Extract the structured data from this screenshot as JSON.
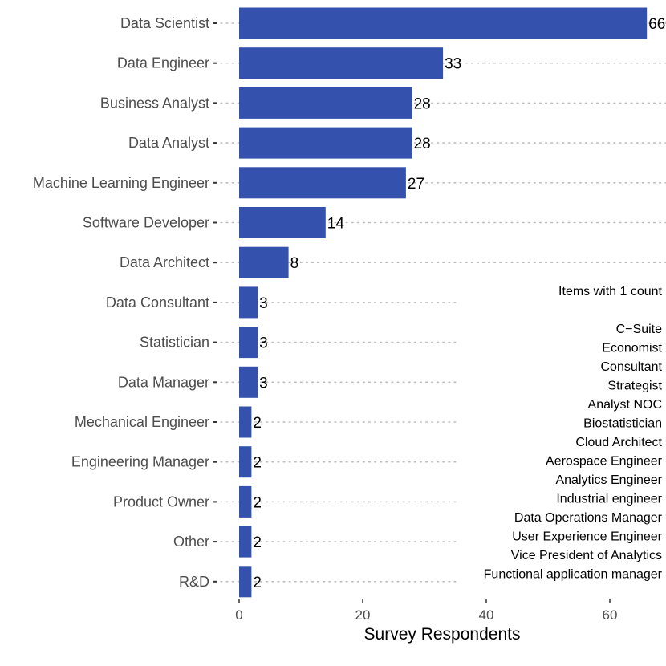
{
  "chart_data": {
    "type": "bar",
    "orientation": "horizontal",
    "categories": [
      "Data Scientist",
      "Data Engineer",
      "Business Analyst",
      "Data Analyst",
      "Machine Learning Engineer",
      "Software Developer",
      "Data Architect",
      "Data Consultant",
      "Statistician",
      "Data Manager",
      "Mechanical Engineer",
      "Engineering Manager",
      "Product Owner",
      "Other",
      "R&D"
    ],
    "values": [
      66,
      33,
      28,
      28,
      27,
      14,
      8,
      3,
      3,
      3,
      2,
      2,
      2,
      2,
      2
    ],
    "value_labels": [
      "66",
      "33",
      "28",
      "28",
      "27",
      "14",
      "8",
      "3",
      "3",
      "3",
      "2",
      "2",
      "2",
      "2",
      "2"
    ],
    "xlabel": "Survey Respondents",
    "ylabel": "",
    "xlim": [
      0,
      68
    ],
    "x_ticks": [
      0,
      20,
      40,
      60
    ],
    "x_tick_labels": [
      "0",
      "20",
      "40",
      "60"
    ],
    "bar_color": "#3451ad",
    "grid": "dotted horizontal guides",
    "annotation": {
      "title": "Items with 1 count",
      "items": [
        "C−Suite",
        "Economist",
        "Consultant",
        "Strategist",
        "Analyst NOC",
        "Biostatistician",
        "Cloud Architect",
        "Aerospace Engineer",
        "Analytics Engineer",
        "Industrial engineer",
        "Data Operations Manager",
        "User Experience Engineer",
        "Vice President of Analytics",
        "Functional application manager"
      ]
    }
  }
}
